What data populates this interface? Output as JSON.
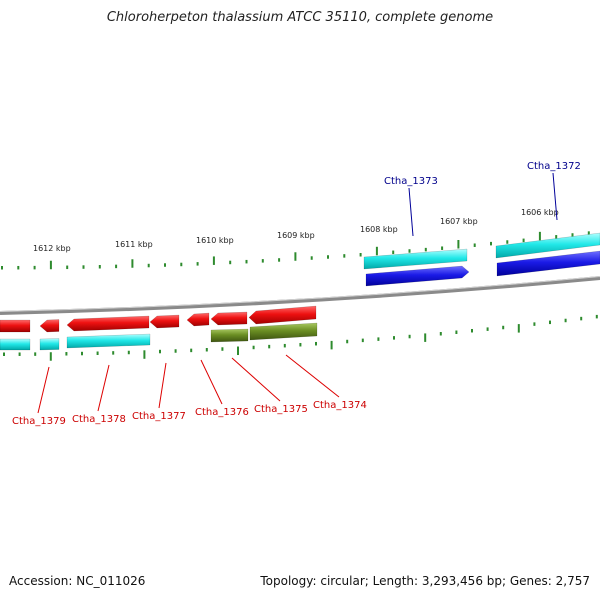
{
  "title": "Chloroherpeton thalassium ATCC 35110, complete genome",
  "footer": {
    "accession": "Accession: NC_011026",
    "summary": "Topology: circular; Length: 3,293,456 bp; Genes: 2,757"
  },
  "colors": {
    "backbone": "#8a8a8a",
    "tick": "#2e8b2e",
    "gene_red": "#e81010",
    "gene_blue": "#1a1ae6",
    "gene_cyan": "#1ee6e6",
    "gene_olive": "#6b8e23",
    "label_red": "#cc0000",
    "label_blue": "#00008b"
  },
  "kbp_ticks": [
    "1612 kbp",
    "1611 kbp",
    "1610 kbp",
    "1609 kbp",
    "1608 kbp",
    "1607 kbp",
    "1606 kbp"
  ],
  "genes_bottom": [
    "Ctha_1379",
    "Ctha_1378",
    "Ctha_1377",
    "Ctha_1376",
    "Ctha_1375",
    "Ctha_1374"
  ],
  "genes_top": [
    "Ctha_1373",
    "Ctha_1372"
  ]
}
